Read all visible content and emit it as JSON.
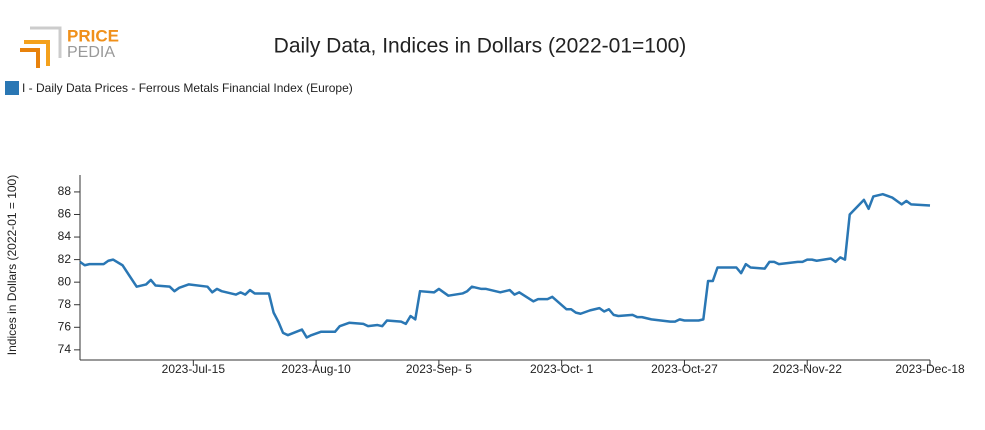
{
  "logo": {
    "top": "PRICE",
    "bottom": "PEDIA"
  },
  "chart_data": {
    "type": "line",
    "title": "Daily Data, Indices in Dollars (2022-01=100)",
    "y_label": "Indices in Dollars (2022-01 = 100)",
    "x": [
      "2023-06-21",
      "2023-06-22",
      "2023-06-23",
      "2023-06-26",
      "2023-06-27",
      "2023-06-28",
      "2023-06-30",
      "2023-07-03",
      "2023-07-05",
      "2023-07-06",
      "2023-07-07",
      "2023-07-10",
      "2023-07-11",
      "2023-07-12",
      "2023-07-14",
      "2023-07-18",
      "2023-07-19",
      "2023-07-20",
      "2023-07-21",
      "2023-07-24",
      "2023-07-25",
      "2023-07-26",
      "2023-07-27",
      "2023-07-28",
      "2023-07-31",
      "2023-08-01",
      "2023-08-02",
      "2023-08-03",
      "2023-08-04",
      "2023-08-07",
      "2023-08-08",
      "2023-08-09",
      "2023-08-11",
      "2023-08-14",
      "2023-08-15",
      "2023-08-17",
      "2023-08-20",
      "2023-08-21",
      "2023-08-23",
      "2023-08-24",
      "2023-08-25",
      "2023-08-28",
      "2023-08-29",
      "2023-08-30",
      "2023-08-31",
      "2023-09-01",
      "2023-09-04",
      "2023-09-05",
      "2023-09-07",
      "2023-09-10",
      "2023-09-11",
      "2023-09-12",
      "2023-09-14",
      "2023-09-15",
      "2023-09-18",
      "2023-09-20",
      "2023-09-21",
      "2023-09-22",
      "2023-09-25",
      "2023-09-26",
      "2023-09-28",
      "2023-09-29",
      "2023-10-02",
      "2023-10-03",
      "2023-10-04",
      "2023-10-05",
      "2023-10-07",
      "2023-10-09",
      "2023-10-10",
      "2023-10-11",
      "2023-10-12",
      "2023-10-13",
      "2023-10-16",
      "2023-10-17",
      "2023-10-18",
      "2023-10-20",
      "2023-10-24",
      "2023-10-25",
      "2023-10-26",
      "2023-10-27",
      "2023-10-30",
      "2023-10-31",
      "2023-11-01",
      "2023-11-02",
      "2023-11-03",
      "2023-11-07",
      "2023-11-08",
      "2023-11-09",
      "2023-11-10",
      "2023-11-13",
      "2023-11-14",
      "2023-11-15",
      "2023-11-16",
      "2023-11-20",
      "2023-11-21",
      "2023-11-22",
      "2023-11-23",
      "2023-11-24",
      "2023-11-27",
      "2023-11-28",
      "2023-11-29",
      "2023-11-30",
      "2023-12-01",
      "2023-12-04",
      "2023-12-05",
      "2023-12-06",
      "2023-12-08",
      "2023-12-10",
      "2023-12-12",
      "2023-12-13",
      "2023-12-14",
      "2023-12-18"
    ],
    "series": [
      {
        "name": "I - Daily Data Prices - Ferrous Metals Financial Index (Europe)",
        "color": "#2a77b4",
        "values": [
          81.8,
          81.5,
          81.6,
          81.6,
          81.9,
          82.0,
          81.5,
          79.6,
          79.8,
          80.2,
          79.7,
          79.6,
          79.2,
          79.5,
          79.8,
          79.6,
          79.1,
          79.4,
          79.2,
          78.9,
          79.1,
          78.9,
          79.3,
          79.0,
          79.0,
          77.3,
          76.5,
          75.5,
          75.3,
          75.8,
          75.1,
          75.3,
          75.6,
          75.6,
          76.1,
          76.4,
          76.3,
          76.1,
          76.2,
          76.1,
          76.6,
          76.5,
          76.3,
          77.0,
          76.7,
          79.2,
          79.1,
          79.4,
          78.8,
          79.0,
          79.2,
          79.6,
          79.4,
          79.4,
          79.1,
          79.3,
          78.9,
          79.1,
          78.3,
          78.5,
          78.5,
          78.7,
          77.6,
          77.6,
          77.3,
          77.2,
          77.5,
          77.7,
          77.4,
          77.6,
          77.1,
          77.0,
          77.1,
          76.9,
          76.9,
          76.7,
          76.5,
          76.5,
          76.7,
          76.6,
          76.6,
          76.7,
          80.1,
          80.1,
          81.3,
          81.3,
          80.8,
          81.6,
          81.3,
          81.2,
          81.8,
          81.8,
          81.6,
          81.8,
          81.8,
          82.0,
          82.0,
          81.9,
          82.1,
          81.8,
          82.2,
          82.0,
          86.0,
          87.3,
          86.5,
          87.6,
          87.8,
          87.5,
          86.9,
          87.2,
          86.9,
          86.8
        ]
      }
    ],
    "xlim": [
      "2023-06-21",
      "2023-12-18"
    ],
    "xticks": [
      {
        "value": "2023-07-15",
        "label": "2023-Jul-15"
      },
      {
        "value": "2023-08-10",
        "label": "2023-Aug-10"
      },
      {
        "value": "2023-09-05",
        "label": "2023-Sep- 5"
      },
      {
        "value": "2023-10-01",
        "label": "2023-Oct- 1"
      },
      {
        "value": "2023-10-27",
        "label": "2023-Oct-27"
      },
      {
        "value": "2023-11-22",
        "label": "2023-Nov-22"
      },
      {
        "value": "2023-12-18",
        "label": "2023-Dec-18"
      }
    ],
    "ylim": [
      73.1,
      89.5
    ],
    "yticks": [
      74,
      76,
      78,
      80,
      82,
      84,
      86,
      88
    ],
    "grid": false
  }
}
